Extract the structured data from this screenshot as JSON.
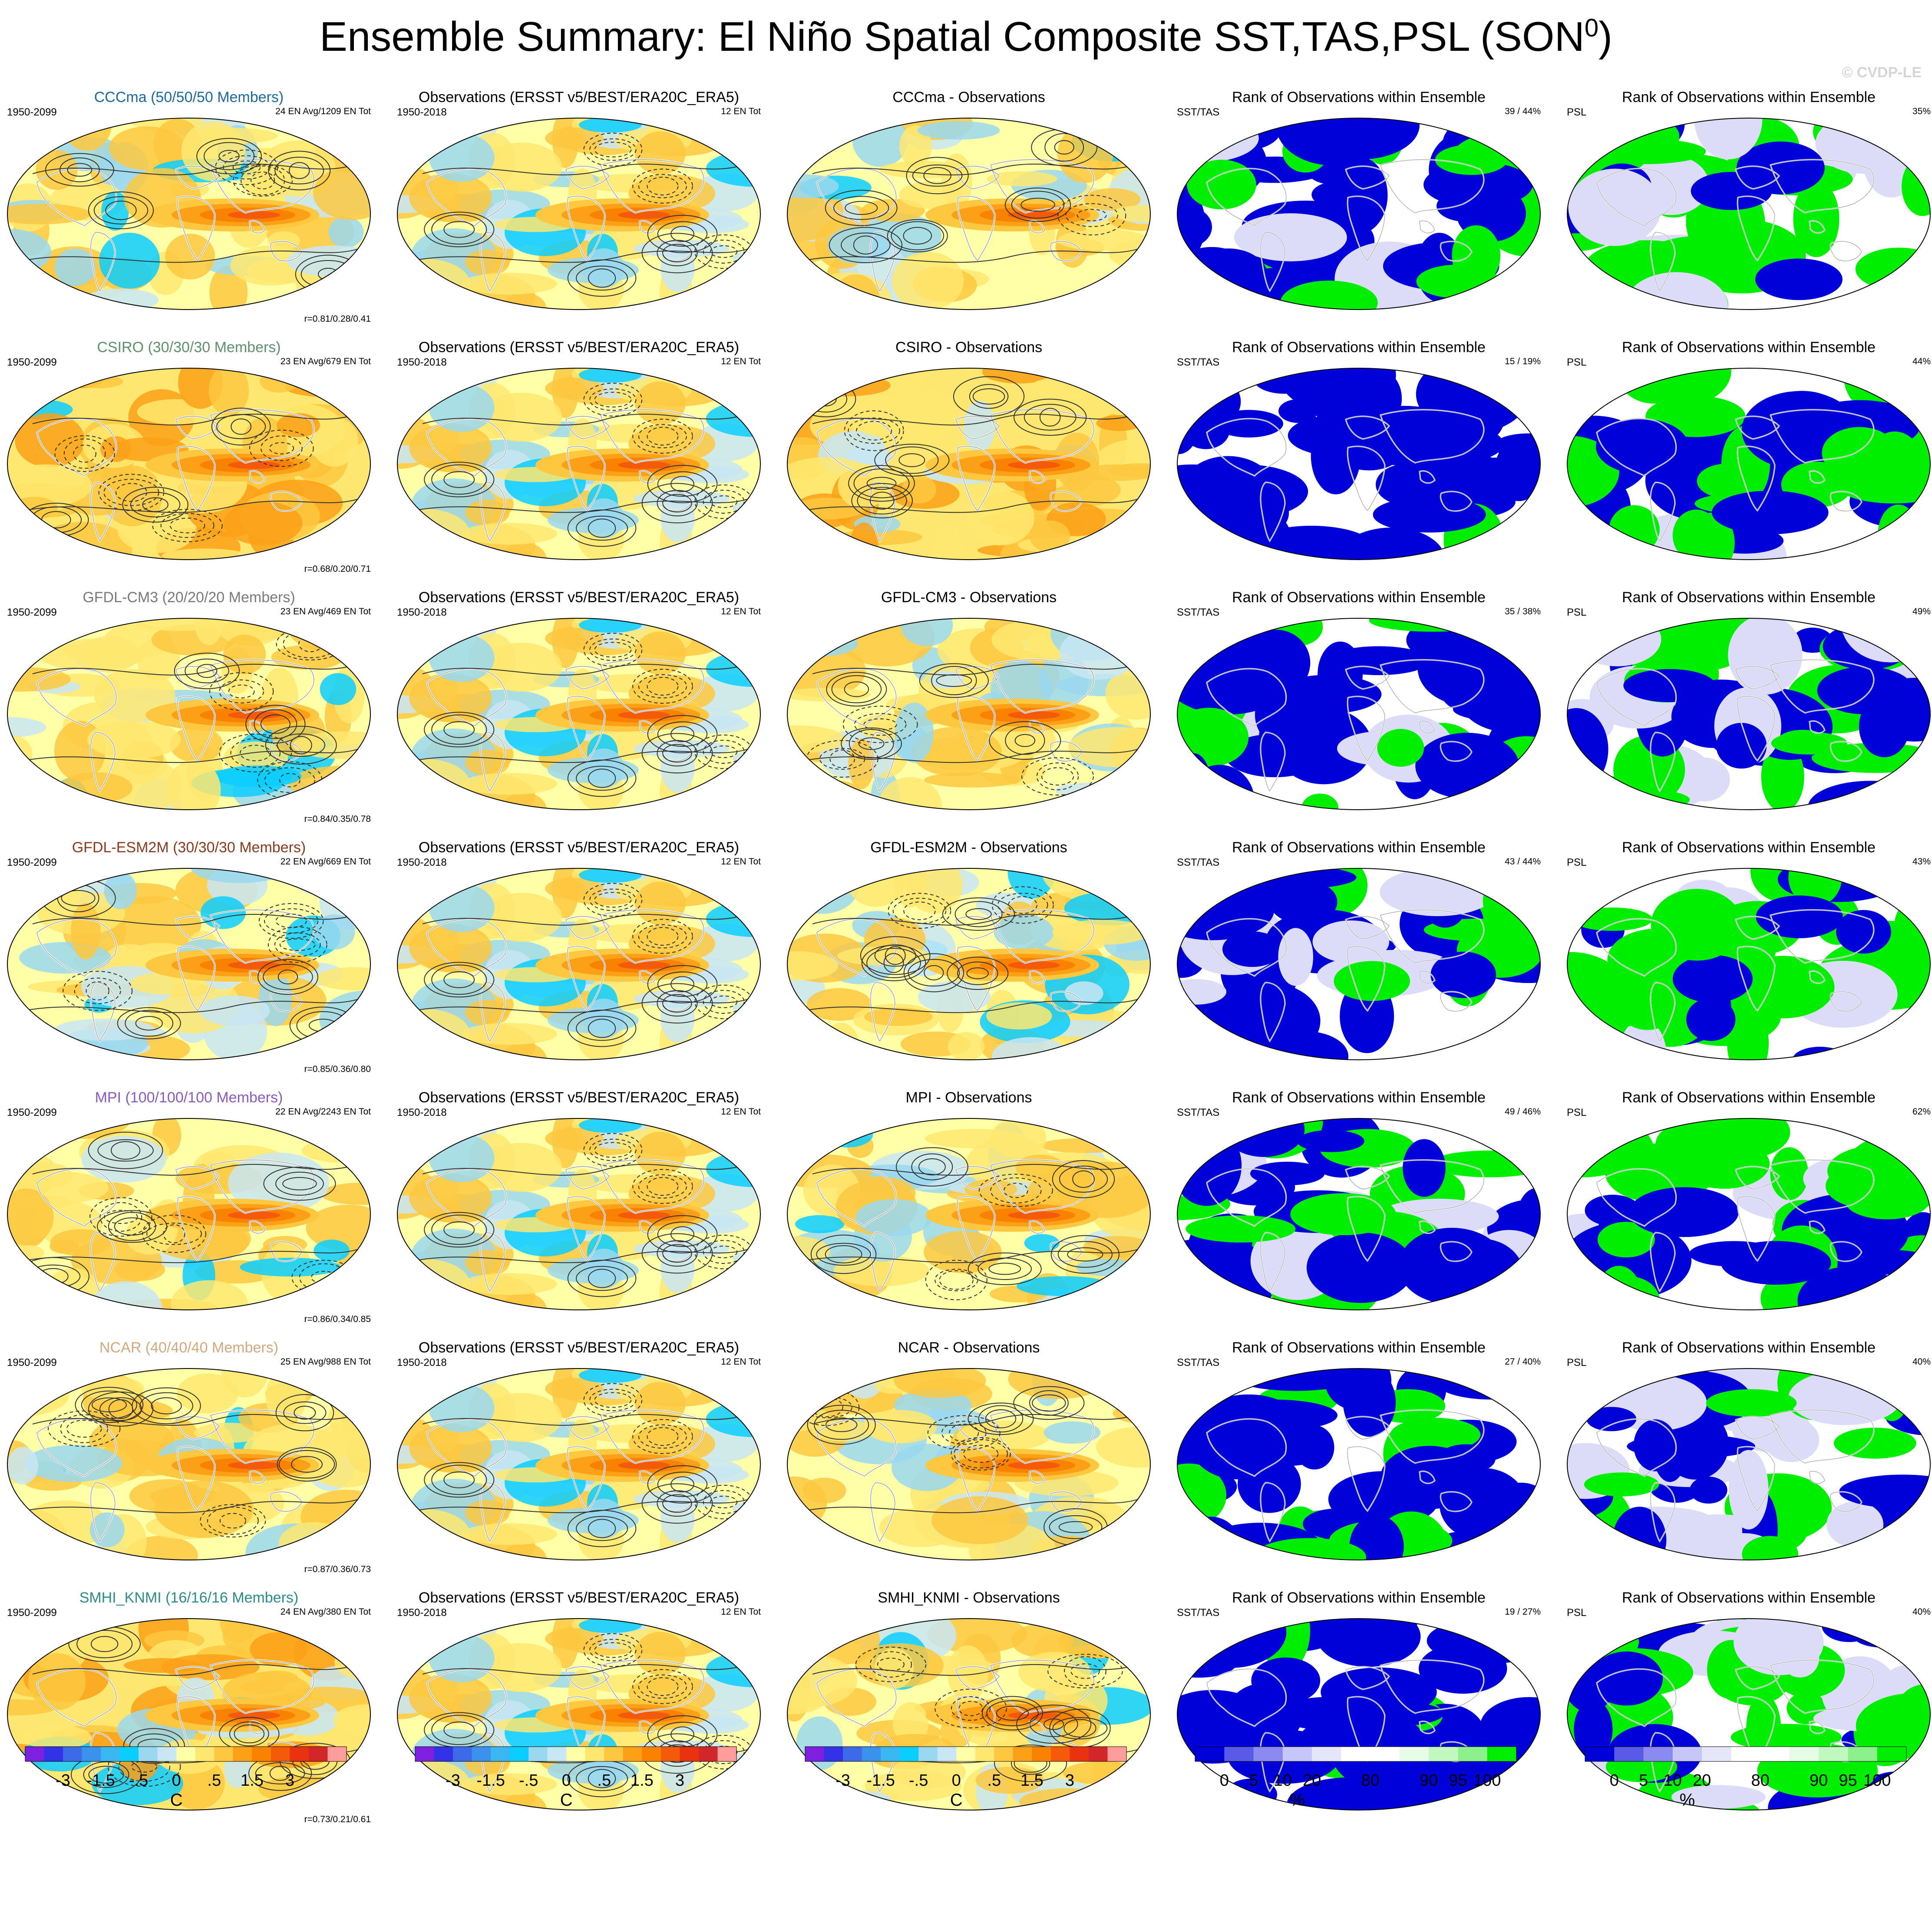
{
  "title": "Ensemble Summary: El Niño Spatial Composite SST,TAS,PSL (SON",
  "title_sup": "0",
  "title_close": ")",
  "copyright": "© CVDP-LE",
  "colors": {
    "land_outline": "#ffffff",
    "coast": "#7f7f7f",
    "rank_blue": "#0000d8",
    "rank_green": "#00ee00"
  },
  "rows": [
    {
      "model_title": "CCCma (50/50/50 Members)",
      "model_color": "#1a6aa0",
      "years": "1950-2099",
      "ens_info": "24 EN Avg/1209 EN Tot",
      "corr": "r=0.81/0.28/0.41",
      "obs_title": "Observations (ERSST v5/BEST/ERA20C_ERA5)",
      "obs_years": "1950-2018",
      "obs_info": "12 EN Tot",
      "diff_title": "CCCma - Observations",
      "rank_title": "Rank of Observations within Ensemble",
      "rank_sst_label": "SST/TAS",
      "rank_sst_val": "39 /  44%",
      "rank_psl_label": "PSL",
      "rank_psl_val": "35%",
      "model_warm": 0.55,
      "diff_warm": 0.5,
      "sst_blue": 0.6,
      "psl_green": 0.55
    },
    {
      "model_title": "CSIRO (30/30/30 Members)",
      "model_color": "#5f8f6f",
      "years": "1950-2099",
      "ens_info": "23 EN Avg/679 EN Tot",
      "corr": "r=0.68/0.20/0.71",
      "obs_title": "Observations (ERSST v5/BEST/ERA20C_ERA5)",
      "obs_years": "1950-2018",
      "obs_info": "12 EN Tot",
      "diff_title": "CSIRO - Observations",
      "rank_title": "Rank of Observations within Ensemble",
      "rank_sst_label": "SST/TAS",
      "rank_sst_val": "15 /  19%",
      "rank_psl_label": "PSL",
      "rank_psl_val": "44%",
      "model_warm": 0.95,
      "diff_warm": 0.85,
      "sst_blue": 0.9,
      "psl_green": 0.5
    },
    {
      "model_title": "GFDL-CM3 (20/20/20 Members)",
      "model_color": "#7a7a7a",
      "years": "1950-2099",
      "ens_info": "23 EN Avg/469 EN Tot",
      "corr": "r=0.84/0.35/0.78",
      "obs_title": "Observations (ERSST v5/BEST/ERA20C_ERA5)",
      "obs_years": "1950-2018",
      "obs_info": "12 EN Tot",
      "diff_title": "GFDL-CM3 - Observations",
      "rank_title": "Rank of Observations within Ensemble",
      "rank_sst_label": "SST/TAS",
      "rank_sst_val": "35 /  38%",
      "rank_psl_label": "PSL",
      "rank_psl_val": "49%",
      "model_warm": 0.6,
      "diff_warm": 0.5,
      "sst_blue": 0.65,
      "psl_green": 0.45
    },
    {
      "model_title": "GFDL-ESM2M (30/30/30 Members)",
      "model_color": "#8b3a1e",
      "years": "1950-2099",
      "ens_info": "22 EN Avg/669 EN Tot",
      "corr": "r=0.85/0.36/0.80",
      "obs_title": "Observations (ERSST v5/BEST/ERA20C_ERA5)",
      "obs_years": "1950-2018",
      "obs_info": "12 EN Tot",
      "diff_title": "GFDL-ESM2M - Observations",
      "rank_title": "Rank of Observations within Ensemble",
      "rank_sst_label": "SST/TAS",
      "rank_sst_val": "43 /  44%",
      "rank_psl_label": "PSL",
      "rank_psl_val": "43%",
      "model_warm": 0.35,
      "diff_warm": 0.4,
      "sst_blue": 0.45,
      "psl_green": 0.6
    },
    {
      "model_title": "MPI (100/100/100 Members)",
      "model_color": "#8a5ac0",
      "years": "1950-2099",
      "ens_info": "22 EN Avg/2243 EN Tot",
      "corr": "r=0.86/0.34/0.85",
      "obs_title": "Observations (ERSST v5/BEST/ERA20C_ERA5)",
      "obs_years": "1950-2018",
      "obs_info": "12 EN Tot",
      "diff_title": "MPI - Observations",
      "rank_title": "Rank of Observations within Ensemble",
      "rank_sst_label": "SST/TAS",
      "rank_sst_val": "49 /  46%",
      "rank_psl_label": "PSL",
      "rank_psl_val": "62%",
      "model_warm": 0.6,
      "diff_warm": 0.45,
      "sst_blue": 0.5,
      "psl_green": 0.6
    },
    {
      "model_title": "NCAR (40/40/40 Members)",
      "model_color": "#d2a97c",
      "years": "1950-2099",
      "ens_info": "25 EN Avg/988 EN Tot",
      "corr": "r=0.87/0.36/0.73",
      "obs_title": "Observations (ERSST v5/BEST/ERA20C_ERA5)",
      "obs_years": "1950-2018",
      "obs_info": "12 EN Tot",
      "diff_title": "NCAR - Observations",
      "rank_title": "Rank of Observations within Ensemble",
      "rank_sst_label": "SST/TAS",
      "rank_sst_val": "27 /  40%",
      "rank_psl_label": "PSL",
      "rank_psl_val": "40%",
      "model_warm": 0.65,
      "diff_warm": 0.5,
      "sst_blue": 0.75,
      "psl_green": 0.45
    },
    {
      "model_title": "SMHI_KNMI (16/16/16 Members)",
      "model_color": "#2b8c8c",
      "years": "1950-2099",
      "ens_info": "24 EN Avg/380 EN Tot",
      "corr": "r=0.73/0.21/0.61",
      "obs_title": "Observations (ERSST v5/BEST/ERA20C_ERA5)",
      "obs_years": "1950-2018",
      "obs_info": "12 EN Tot",
      "diff_title": "SMHI_KNMI - Observations",
      "rank_title": "Rank of Observations within Ensemble",
      "rank_sst_label": "SST/TAS",
      "rank_sst_val": "19 /  27%",
      "rank_psl_label": "PSL",
      "rank_psl_val": "40%",
      "model_warm": 0.8,
      "diff_warm": 0.7,
      "sst_blue": 0.85,
      "psl_green": 0.5
    }
  ],
  "colorbars": {
    "temperature": {
      "colors": [
        "#7f1fe0",
        "#3232e6",
        "#3c6ae8",
        "#3a92ec",
        "#3ab6f0",
        "#0aceff",
        "#9ad8f0",
        "#c8e6f4",
        "#ffffa8",
        "#fee770",
        "#fdc840",
        "#fca018",
        "#f98200",
        "#f45a0a",
        "#e83210",
        "#d2262a",
        "#ff9c9c"
      ],
      "labels": [
        "-3",
        "-1.5",
        "-.5",
        "0",
        ".5",
        "1.5",
        "3"
      ],
      "unit": "C"
    },
    "rank": {
      "colors": [
        "#0000d8",
        "#5a5ae8",
        "#8a8af0",
        "#c6c6f8",
        "#e6e6fb",
        "#ffffff",
        "#ffffff",
        "#e6fce6",
        "#c0f8c0",
        "#8cf08c",
        "#00ee00"
      ],
      "labels": [
        "0",
        "5",
        "10",
        "20",
        "80",
        "90",
        "95",
        "100"
      ],
      "unit": "%"
    }
  }
}
